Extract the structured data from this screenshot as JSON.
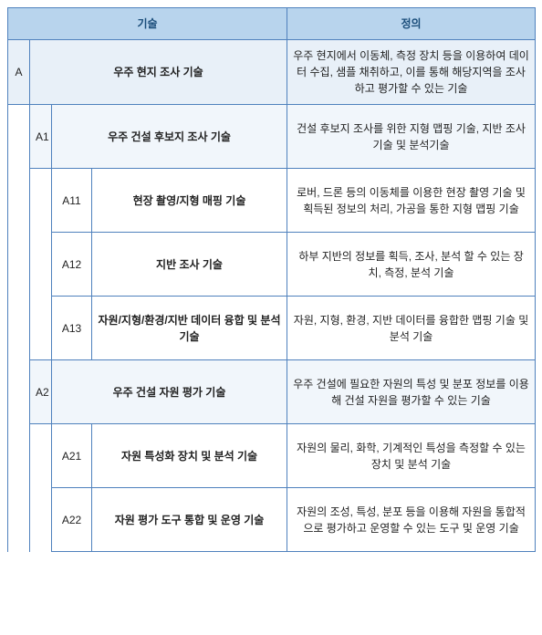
{
  "headers": {
    "tech": "기술",
    "def": "정의"
  },
  "rows": [
    {
      "type": "A",
      "code": "A",
      "tech": "우주 현지 조사 기술",
      "def": "우주 현지에서 이동체, 측정 장치 등을 이용하여 데이터 수집, 샘플 채취하고, 이를 통해 해당지역을 조사하고 평가할 수 있는 기술"
    },
    {
      "type": "A1",
      "code": "A1",
      "tech": "우주 건설 후보지 조사 기술",
      "def": "건설 후보지 조사를 위한 지형 맵핑 기술, 지반 조사 기술 및 분석기술"
    },
    {
      "type": "leaf",
      "code": "A11",
      "tech": "현장 촬영/지형 매핑 기술",
      "def": "로버, 드론 등의 이동체를 이용한 현장 촬영 기술 및 획득된 정보의 처리, 가공을 통한 지형 맵핑 기술"
    },
    {
      "type": "leaf",
      "code": "A12",
      "tech": "지반 조사 기술",
      "def": "하부 지반의 정보를 획득, 조사, 분석 할 수 있는 장치, 측정, 분석 기술"
    },
    {
      "type": "leaf",
      "code": "A13",
      "tech": "자원/지형/환경/지반 데이터 융합 및 분석 기술",
      "def": "자원, 지형, 환경, 지반 데이터를 융합한 맵핑 기술 및 분석 기술"
    },
    {
      "type": "A1",
      "code": "A2",
      "tech": "우주 건설 자원 평가 기술",
      "def": "우주 건설에 필요한 자원의 특성 및 분포 정보를 이용해 건설 자원을 평가할 수 있는 기술"
    },
    {
      "type": "leaf",
      "code": "A21",
      "tech": "자원 특성화 장치 및 분석 기술",
      "def": "자원의 물리, 화학, 기계적인 특성을 측정할 수 있는 장치 및 분석 기술"
    },
    {
      "type": "leaf",
      "code": "A22",
      "tech": "자원 평가 도구 통합 및 운영 기술",
      "def": "자원의 조성, 특성, 분포 등을 이용해 자원을 통합적으로 평가하고 운영할 수 있는 도구 및 운영 기술"
    }
  ]
}
